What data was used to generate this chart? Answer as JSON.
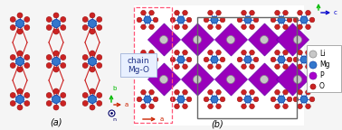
{
  "background_color": "#f5f5f5",
  "panel_a_label": "(a)",
  "panel_b_label": "(b)",
  "chain_label": "chain",
  "mgO_label": "Mg-O",
  "legend_items": [
    {
      "label": "Li",
      "facecolor": "#c8c8c8",
      "edgecolor": "#888888"
    },
    {
      "label": "Mg",
      "facecolor": "#3377cc",
      "edgecolor": "#1144aa"
    },
    {
      "label": "P",
      "facecolor": "#aa00cc",
      "edgecolor": "#7700aa"
    },
    {
      "label": "O",
      "facecolor": "#cc2222",
      "edgecolor": "#991111"
    }
  ],
  "mg_color": "#3377cc",
  "mg_edge": "#1144aa",
  "o_color": "#cc2222",
  "o_edge": "#991111",
  "p_color": "#9900bb",
  "p_edge": "#6600aa",
  "li_color": "#c8c8c8",
  "li_edge": "#888888",
  "spoke_color": "#3377cc",
  "conn_color": "#cc2222",
  "axis_b_color": "#00bb00",
  "axis_c_color": "#0000cc",
  "axis_a_color": "#cc2200",
  "axis_n_color": "#000066",
  "unit_cell_color": "#666666",
  "chain_box_color": "#ff5577"
}
